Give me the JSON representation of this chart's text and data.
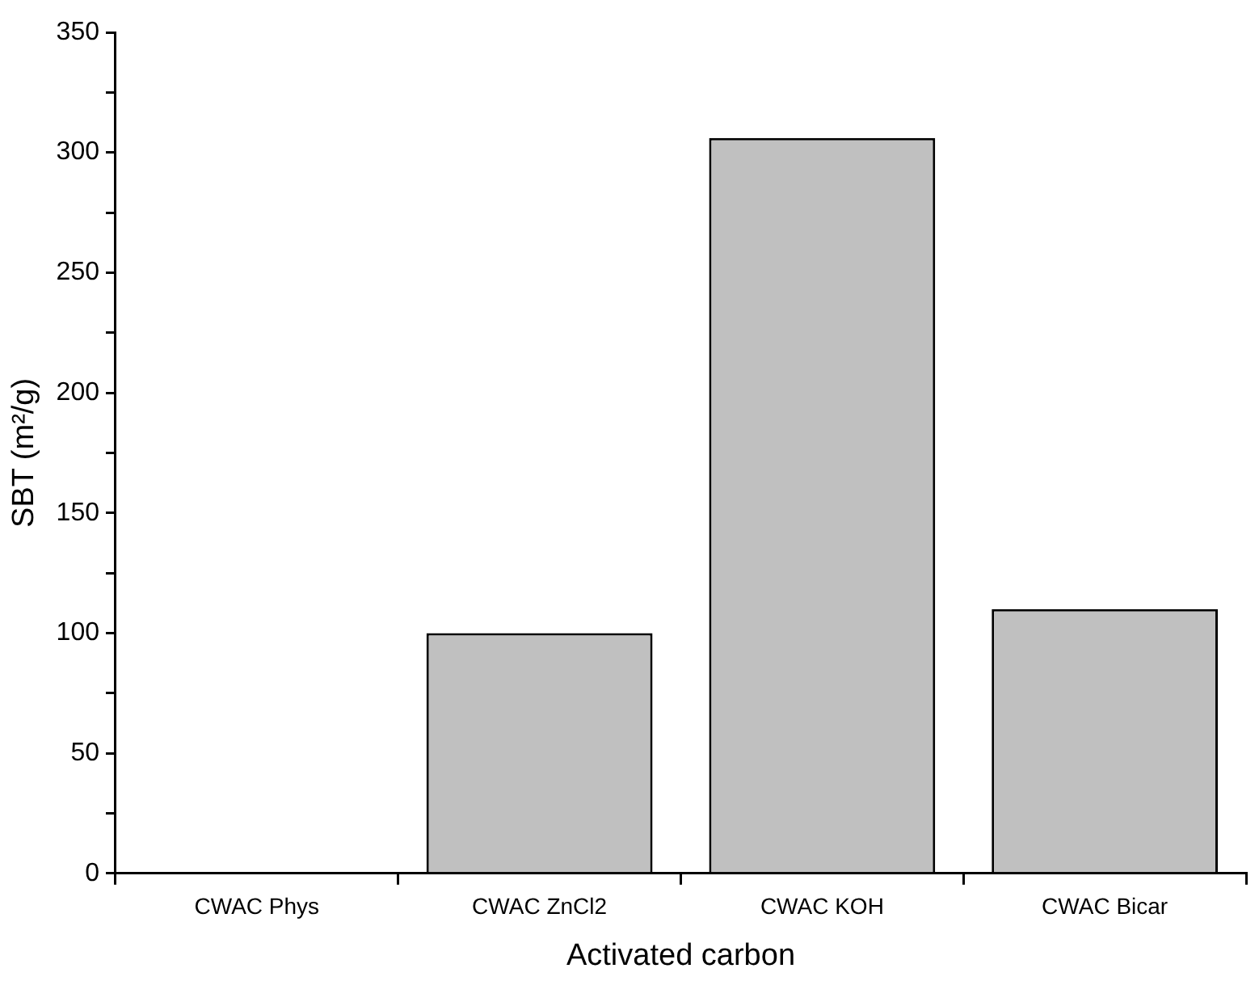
{
  "chart_data": {
    "type": "bar",
    "xlabel": "Activated carbon",
    "ylabel": "SBT (m²/g)",
    "categories": [
      "CWAC Phys",
      "CWAC ZnCl2",
      "CWAC KOH",
      "CWAC Bicar"
    ],
    "values": [
      null,
      100,
      306,
      110
    ],
    "color": "#c0c0c0",
    "ylim": [
      0,
      350
    ],
    "yticks": [
      0,
      {
        "value": 25,
        "label": null
      },
      50,
      {
        "value": 75,
        "label": null
      },
      100,
      {
        "value": 125,
        "label": null
      },
      150,
      {
        "value": 175,
        "label": null
      },
      200,
      {
        "value": 225,
        "label": null
      },
      250,
      {
        "value": 275,
        "label": null
      },
      300,
      {
        "value": 325,
        "label": null
      },
      350
    ],
    "grid": false,
    "legend": false
  }
}
